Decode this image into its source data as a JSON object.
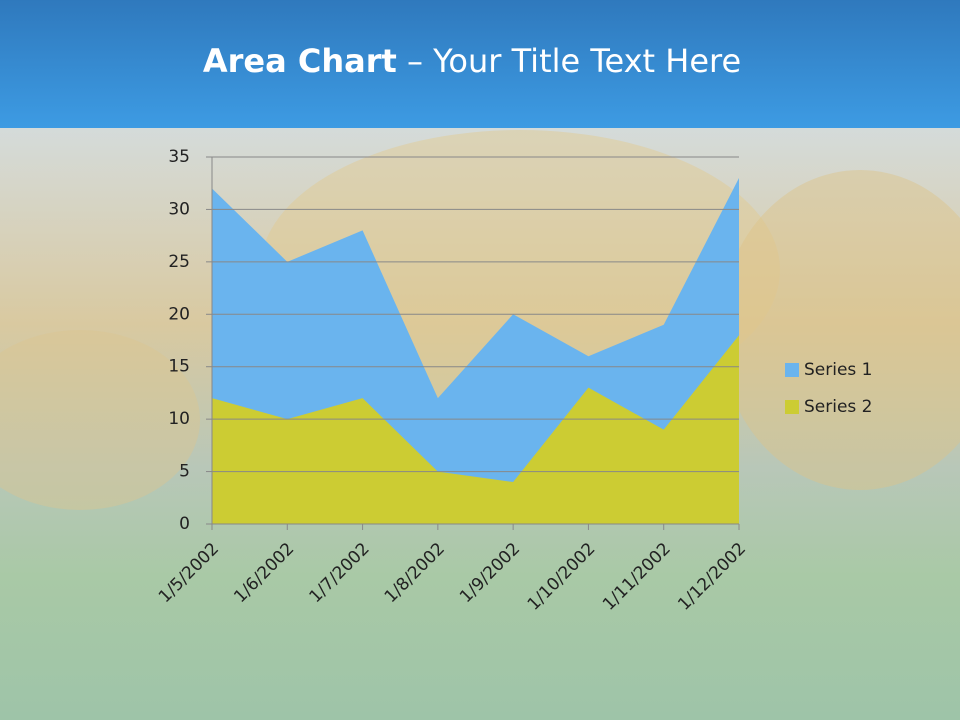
{
  "chart_data": {
    "type": "area",
    "title_parts": [
      "Area Chart",
      "– Your Title Text Here"
    ],
    "categories": [
      "1/5/2002",
      "1/6/2002",
      "1/7/2002",
      "1/8/2002",
      "1/9/2002",
      "1/10/2002",
      "1/11/2002",
      "1/12/2002"
    ],
    "series": [
      {
        "name": "Series 1",
        "color": "#6ab4ee",
        "values": [
          32,
          25,
          28,
          12,
          20,
          16,
          19,
          33
        ]
      },
      {
        "name": "Series 2",
        "color": "#cccc33",
        "values": [
          12,
          10,
          12,
          5,
          4,
          13,
          9,
          18
        ]
      }
    ],
    "ylim": [
      0,
      35
    ],
    "yticks": [
      0,
      5,
      10,
      15,
      20,
      25,
      30,
      35
    ],
    "grid": true,
    "legend": "right"
  }
}
